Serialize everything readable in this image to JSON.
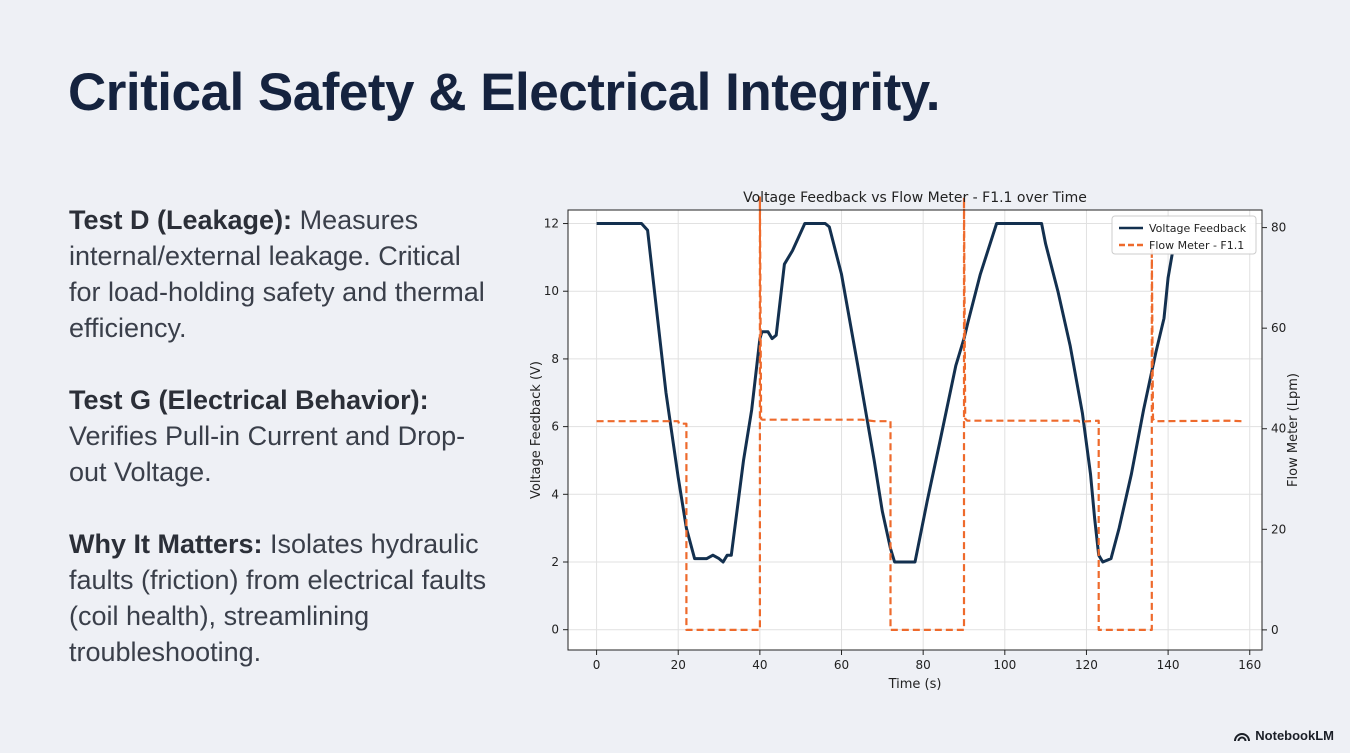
{
  "slide": {
    "title": "Critical Safety & Electrical Integrity.",
    "bullets": [
      {
        "heading": "Test D (Leakage):",
        "text": "Measures internal/external leakage. Critical for load-holding safety and thermal efficiency."
      },
      {
        "heading": "Test G (Electrical Behavior):",
        "text": "Verifies Pull-in Current and Drop-out Voltage."
      },
      {
        "heading": "Why It Matters:",
        "text": "Isolates hydraulic faults (friction) from electrical faults (coil health), streamlining troubleshooting."
      }
    ],
    "brand": "NotebookLM"
  },
  "chart_data": {
    "type": "line",
    "title": "Voltage Feedback vs Flow Meter - F1.1 over Time",
    "xlabel": "Time (s)",
    "ylabel": "Voltage Feedback (V)",
    "y2label": "Flow Meter (Lpm)",
    "xlim": [
      -7,
      163
    ],
    "ylim": [
      -0.6,
      12.4
    ],
    "y2lim": [
      -4,
      83.5
    ],
    "xticks": [
      0,
      20,
      40,
      60,
      80,
      100,
      120,
      140,
      160
    ],
    "yticks": [
      0,
      2,
      4,
      6,
      8,
      10,
      12
    ],
    "y2ticks": [
      0,
      20,
      40,
      60,
      80
    ],
    "grid": true,
    "legend_position": "top-right",
    "series": [
      {
        "name": "Voltage Feedback",
        "axis": "left",
        "color": "#13304f",
        "style": "solid",
        "x": [
          0,
          11,
          12.5,
          14,
          17,
          20,
          22,
          24,
          27,
          28.5,
          30,
          31,
          32,
          33,
          36,
          38,
          40,
          40.5,
          42,
          43,
          44,
          46,
          48,
          51,
          54,
          55,
          56,
          57,
          60,
          64,
          68,
          70,
          72,
          73,
          75,
          77,
          78,
          81,
          84,
          88,
          90,
          91,
          94,
          98,
          100,
          105,
          108,
          109,
          110,
          113,
          116,
          119,
          121,
          122,
          123,
          124,
          126,
          128,
          131,
          134,
          137,
          139,
          140,
          141
        ],
        "y": [
          12,
          12,
          11.8,
          10.2,
          7,
          4.5,
          3,
          2.1,
          2.1,
          2.2,
          2.1,
          2.0,
          2.2,
          2.2,
          5,
          6.5,
          8.6,
          8.8,
          8.8,
          8.6,
          8.7,
          10.8,
          11.2,
          12,
          12,
          12,
          12,
          11.9,
          10.5,
          7.8,
          5,
          3.5,
          2.4,
          2.0,
          2.0,
          2.0,
          2.0,
          3.8,
          5.5,
          7.8,
          8.6,
          9.1,
          10.5,
          12,
          12,
          12,
          12,
          12,
          11.4,
          10,
          8.4,
          6.4,
          4.6,
          3.3,
          2.2,
          2.0,
          2.1,
          3.0,
          4.6,
          6.5,
          8.2,
          9.2,
          10.4,
          11.1
        ]
      },
      {
        "name": "Flow Meter - F1.1",
        "axis": "right",
        "color": "#ee6a2c",
        "style": "dashed",
        "x": [
          0,
          20,
          20.2,
          22,
          22,
          40,
          40,
          40.3,
          40.6,
          65,
          68,
          68.3,
          72,
          72,
          90,
          90,
          90.3,
          90.8,
          110,
          118,
          118.3,
          123,
          123,
          136,
          136,
          136.3,
          136.7,
          155,
          158
        ],
        "y": [
          41.5,
          41.5,
          41,
          41,
          0,
          0,
          86,
          42,
          41.8,
          41.8,
          41.5,
          41.5,
          41.5,
          0,
          0,
          86,
          42,
          41.6,
          41.6,
          41.6,
          41.4,
          41.6,
          0,
          0,
          76,
          42,
          41.5,
          41.6,
          41.5
        ]
      }
    ]
  }
}
